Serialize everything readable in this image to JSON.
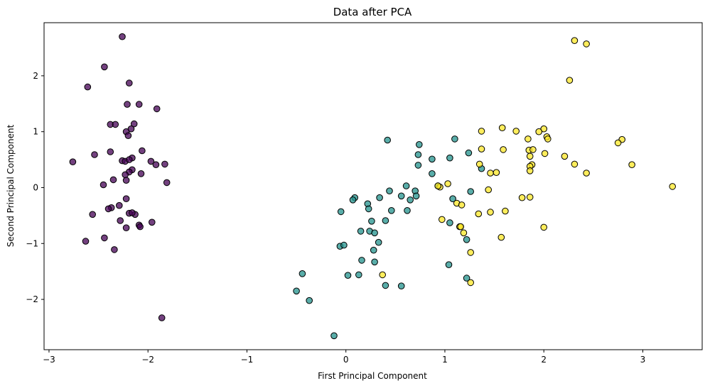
{
  "chart_data": {
    "type": "scatter",
    "title": "Data after PCA",
    "xlabel": "First Principal Component",
    "ylabel": "Second Principal Component",
    "xlim": [
      -3.05,
      3.6
    ],
    "ylim": [
      -2.9,
      2.95
    ],
    "xticks": [
      -3,
      -2,
      -1,
      0,
      1,
      2,
      3
    ],
    "yticks": [
      -2,
      -1,
      0,
      1,
      2
    ],
    "xtick_labels": [
      "−3",
      "−2",
      "−1",
      "0",
      "1",
      "2",
      "3"
    ],
    "ytick_labels": [
      "−2",
      "−1",
      "0",
      "1",
      "2"
    ],
    "grid": false,
    "legend": "none",
    "series": [
      {
        "color": "#440154",
        "points": [
          [
            -2.26,
            2.7
          ],
          [
            -2.44,
            2.16
          ],
          [
            -2.61,
            1.8
          ],
          [
            -2.19,
            1.87
          ],
          [
            -1.91,
            1.41
          ],
          [
            -2.21,
            1.49
          ],
          [
            -2.09,
            1.49
          ],
          [
            -2.38,
            1.13
          ],
          [
            -2.33,
            1.13
          ],
          [
            -2.14,
            1.14
          ],
          [
            -2.22,
            1.0
          ],
          [
            -2.17,
            1.05
          ],
          [
            -2.2,
            0.93
          ],
          [
            -2.76,
            0.46
          ],
          [
            -2.54,
            0.59
          ],
          [
            -2.38,
            0.64
          ],
          [
            -2.06,
            0.66
          ],
          [
            -2.26,
            0.48
          ],
          [
            -2.23,
            0.47
          ],
          [
            -2.16,
            0.53
          ],
          [
            -2.19,
            0.5
          ],
          [
            -1.97,
            0.47
          ],
          [
            -1.92,
            0.41
          ],
          [
            -1.83,
            0.42
          ],
          [
            -2.16,
            0.32
          ],
          [
            -2.19,
            0.28
          ],
          [
            -2.07,
            0.25
          ],
          [
            -2.23,
            0.23
          ],
          [
            -2.35,
            0.14
          ],
          [
            -2.22,
            0.13
          ],
          [
            -2.45,
            0.05
          ],
          [
            -1.81,
            0.09
          ],
          [
            -2.22,
            -0.2
          ],
          [
            -2.29,
            -0.32
          ],
          [
            -2.37,
            -0.36
          ],
          [
            -2.4,
            -0.38
          ],
          [
            -2.56,
            -0.48
          ],
          [
            -2.19,
            -0.46
          ],
          [
            -2.13,
            -0.48
          ],
          [
            -2.16,
            -0.45
          ],
          [
            -2.28,
            -0.59
          ],
          [
            -2.09,
            -0.67
          ],
          [
            -2.08,
            -0.7
          ],
          [
            -1.96,
            -0.62
          ],
          [
            -2.22,
            -0.72
          ],
          [
            -2.44,
            -0.9
          ],
          [
            -2.63,
            -0.96
          ],
          [
            -2.34,
            -1.11
          ],
          [
            -1.86,
            -2.33
          ]
        ]
      },
      {
        "color": "#21918c",
        "points": [
          [
            0.42,
            0.85
          ],
          [
            1.1,
            0.87
          ],
          [
            0.74,
            0.77
          ],
          [
            0.73,
            0.59
          ],
          [
            1.24,
            0.62
          ],
          [
            1.05,
            0.53
          ],
          [
            0.87,
            0.51
          ],
          [
            0.73,
            0.4
          ],
          [
            1.37,
            0.34
          ],
          [
            0.87,
            0.25
          ],
          [
            0.93,
            0.03
          ],
          [
            0.61,
            0.03
          ],
          [
            0.7,
            -0.06
          ],
          [
            0.44,
            -0.06
          ],
          [
            1.26,
            -0.07
          ],
          [
            0.34,
            -0.18
          ],
          [
            0.56,
            -0.15
          ],
          [
            0.71,
            -0.15
          ],
          [
            0.65,
            -0.22
          ],
          [
            0.09,
            -0.18
          ],
          [
            0.07,
            -0.22
          ],
          [
            1.08,
            -0.2
          ],
          [
            0.22,
            -0.29
          ],
          [
            0.23,
            -0.38
          ],
          [
            0.46,
            -0.41
          ],
          [
            0.62,
            -0.41
          ],
          [
            -0.05,
            -0.43
          ],
          [
            0.26,
            -0.6
          ],
          [
            0.4,
            -0.59
          ],
          [
            1.05,
            -0.63
          ],
          [
            0.15,
            -0.78
          ],
          [
            0.24,
            -0.78
          ],
          [
            0.29,
            -0.81
          ],
          [
            1.22,
            -0.93
          ],
          [
            0.33,
            -0.98
          ],
          [
            -0.06,
            -1.05
          ],
          [
            -0.02,
            -1.03
          ],
          [
            0.28,
            -1.12
          ],
          [
            0.16,
            -1.3
          ],
          [
            0.29,
            -1.33
          ],
          [
            1.04,
            -1.38
          ],
          [
            -0.44,
            -1.54
          ],
          [
            0.02,
            -1.57
          ],
          [
            0.13,
            -1.56
          ],
          [
            1.22,
            -1.62
          ],
          [
            0.4,
            -1.75
          ],
          [
            0.56,
            -1.76
          ],
          [
            -0.5,
            -1.85
          ],
          [
            -0.37,
            -2.02
          ],
          [
            -0.12,
            -2.65
          ]
        ]
      },
      {
        "color": "#fde725",
        "points": [
          [
            2.31,
            2.63
          ],
          [
            2.43,
            2.57
          ],
          [
            2.26,
            1.92
          ],
          [
            1.58,
            1.07
          ],
          [
            2.0,
            1.05
          ],
          [
            1.37,
            1.01
          ],
          [
            1.72,
            1.01
          ],
          [
            1.95,
            1.0
          ],
          [
            2.03,
            0.91
          ],
          [
            2.04,
            0.87
          ],
          [
            1.84,
            0.87
          ],
          [
            2.79,
            0.86
          ],
          [
            2.75,
            0.8
          ],
          [
            1.37,
            0.69
          ],
          [
            1.59,
            0.68
          ],
          [
            1.85,
            0.67
          ],
          [
            1.89,
            0.68
          ],
          [
            2.01,
            0.61
          ],
          [
            1.86,
            0.56
          ],
          [
            2.21,
            0.56
          ],
          [
            1.35,
            0.42
          ],
          [
            1.88,
            0.41
          ],
          [
            1.86,
            0.38
          ],
          [
            2.31,
            0.42
          ],
          [
            2.89,
            0.41
          ],
          [
            1.86,
            0.3
          ],
          [
            1.46,
            0.26
          ],
          [
            1.52,
            0.27
          ],
          [
            2.43,
            0.26
          ],
          [
            3.3,
            0.02
          ],
          [
            0.95,
            0.01
          ],
          [
            0.93,
            0.03
          ],
          [
            1.03,
            0.07
          ],
          [
            1.44,
            -0.04
          ],
          [
            1.78,
            -0.18
          ],
          [
            1.86,
            -0.17
          ],
          [
            1.12,
            -0.28
          ],
          [
            1.17,
            -0.31
          ],
          [
            1.61,
            -0.42
          ],
          [
            1.46,
            -0.44
          ],
          [
            1.34,
            -0.47
          ],
          [
            0.97,
            -0.57
          ],
          [
            1.15,
            -0.7
          ],
          [
            1.16,
            -0.7
          ],
          [
            2.0,
            -0.71
          ],
          [
            1.19,
            -0.81
          ],
          [
            1.57,
            -0.89
          ],
          [
            1.26,
            -1.16
          ],
          [
            0.37,
            -1.56
          ],
          [
            1.26,
            -1.7
          ]
        ]
      }
    ]
  }
}
